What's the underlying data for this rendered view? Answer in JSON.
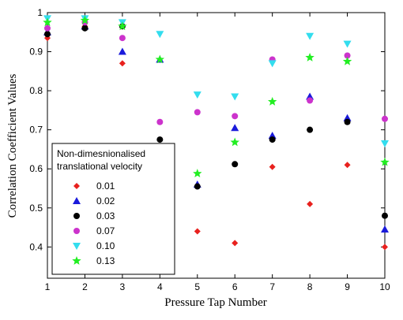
{
  "chart_data": {
    "type": "scatter",
    "xlabel": "Pressure Tap Number",
    "ylabel": "Correlation Coefficient Values",
    "xlim": [
      1,
      10
    ],
    "ylim": [
      0.32,
      1.0
    ],
    "xticks": [
      "1",
      "2",
      "3",
      "4",
      "5",
      "6",
      "7",
      "8",
      "9",
      "10"
    ],
    "yticks": [
      "0.4",
      "0.5",
      "0.6",
      "0.7",
      "0.8",
      "0.9",
      "1"
    ],
    "ytick_values": [
      0.4,
      0.5,
      0.6,
      0.7,
      0.8,
      0.9,
      1.0
    ],
    "grid": false,
    "legend": {
      "placement": "lower-left",
      "title": "Non-dimesnionalised translational velocity",
      "title_lines": [
        "Non-dimesnionalised",
        "translational velocity"
      ]
    },
    "x": [
      1,
      2,
      3,
      4,
      5,
      6,
      7,
      8,
      9,
      10
    ],
    "series": [
      {
        "name": "0.01",
        "marker": "diamond",
        "color": "#e8211e",
        "values": [
          0.935,
          0.965,
          0.87,
          0.645,
          0.44,
          0.41,
          0.605,
          0.51,
          0.61,
          0.4
        ]
      },
      {
        "name": "0.02",
        "marker": "triangle-up",
        "color": "#1a1adb",
        "values": [
          0.95,
          0.965,
          0.9,
          0.88,
          0.56,
          0.705,
          0.685,
          0.785,
          0.73,
          0.445
        ]
      },
      {
        "name": "0.03",
        "marker": "circle",
        "color": "#000000",
        "values": [
          0.945,
          0.96,
          0.965,
          0.675,
          0.555,
          0.612,
          0.675,
          0.7,
          0.72,
          0.48
        ]
      },
      {
        "name": "0.07",
        "marker": "circle",
        "color": "#cc33cc",
        "values": [
          0.96,
          0.975,
          0.935,
          0.72,
          0.745,
          0.735,
          0.88,
          0.775,
          0.89,
          0.728
        ]
      },
      {
        "name": "0.10",
        "marker": "triangle-down",
        "color": "#33ddee",
        "values": [
          0.985,
          0.985,
          0.975,
          0.945,
          0.79,
          0.785,
          0.87,
          0.94,
          0.92,
          0.665
        ]
      },
      {
        "name": "0.13",
        "marker": "star",
        "color": "#22ee22",
        "values": [
          0.975,
          0.98,
          0.965,
          0.88,
          0.588,
          0.668,
          0.772,
          0.885,
          0.875,
          0.617
        ]
      }
    ]
  }
}
